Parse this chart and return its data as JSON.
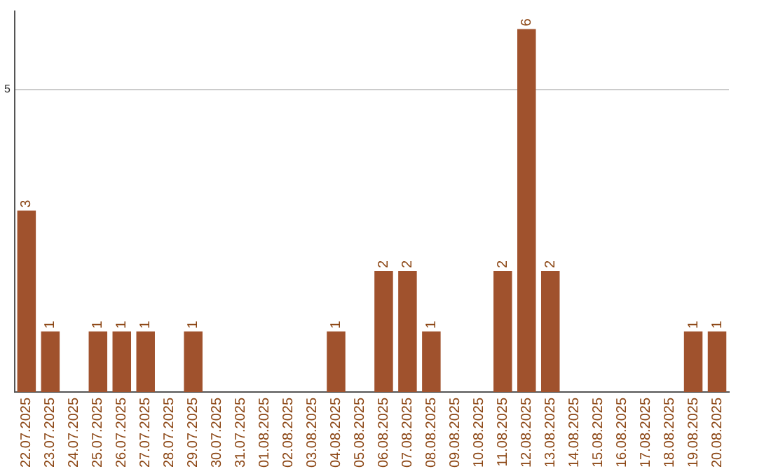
{
  "chart_data": {
    "type": "bar",
    "categories": [
      "22.07.2025",
      "23.07.2025",
      "24.07.2025",
      "25.07.2025",
      "26.07.2025",
      "27.07.2025",
      "28.07.2025",
      "29.07.2025",
      "30.07.2025",
      "31.07.2025",
      "01.08.2025",
      "02.08.2025",
      "03.08.2025",
      "04.08.2025",
      "05.08.2025",
      "06.08.2025",
      "07.08.2025",
      "08.08.2025",
      "09.08.2025",
      "10.08.2025",
      "11.08.2025",
      "12.08.2025",
      "13.08.2025",
      "14.08.2025",
      "15.08.2025",
      "16.08.2025",
      "17.08.2025",
      "18.08.2025",
      "19.08.2025",
      "20.08.2025"
    ],
    "values": [
      3,
      1,
      0,
      1,
      1,
      1,
      0,
      1,
      0,
      0,
      0,
      0,
      0,
      1,
      0,
      2,
      2,
      1,
      0,
      0,
      2,
      6,
      2,
      0,
      0,
      0,
      0,
      0,
      1,
      1
    ],
    "value_labels": [
      "3",
      "1",
      null,
      "1",
      "1",
      "1",
      null,
      "1",
      null,
      null,
      null,
      null,
      null,
      "1",
      null,
      "2",
      "2",
      "1",
      null,
      null,
      "2",
      "6",
      "2",
      null,
      null,
      null,
      null,
      null,
      "1",
      "1"
    ],
    "color": "#a0522d",
    "ylim": [
      0,
      6.3
    ],
    "yticks": [
      5
    ],
    "grid": "y",
    "legend": false
  }
}
